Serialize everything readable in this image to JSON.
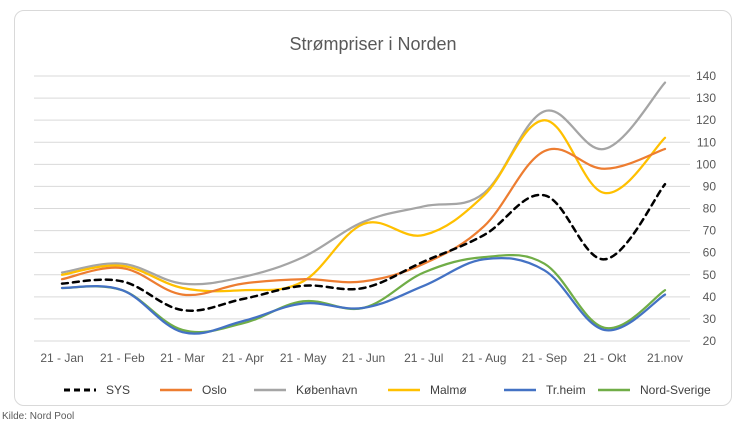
{
  "chart_data": {
    "type": "line",
    "title": "Strømpriser i Norden",
    "categories": [
      "21 - Jan",
      "21 - Feb",
      "21 - Mar",
      "21 - Apr",
      "21 - May",
      "21 - Jun",
      "21 - Jul",
      "21 - Aug",
      "21 - Sep",
      "21 - Okt",
      "21.nov"
    ],
    "y_ticks": [
      "140",
      "130",
      "120",
      "110",
      "100",
      "90",
      "80",
      "70",
      "60",
      "50",
      "40",
      "30",
      "20"
    ],
    "ylim": [
      20,
      140
    ],
    "y_axis_side": "right",
    "grid": true,
    "legend_position": "bottom",
    "series": [
      {
        "name": "SYS",
        "color": "#000000",
        "dashed": true,
        "values": [
          46,
          47,
          34,
          39,
          45,
          44,
          56,
          68,
          86,
          57,
          91
        ]
      },
      {
        "name": "Oslo",
        "color": "#ED7D31",
        "dashed": false,
        "values": [
          48,
          53,
          41,
          46,
          48,
          47,
          55,
          72,
          106,
          98,
          107
        ]
      },
      {
        "name": "København",
        "color": "#A5A5A5",
        "dashed": false,
        "values": [
          51,
          55,
          46,
          49,
          58,
          74,
          81,
          87,
          124,
          107,
          137
        ]
      },
      {
        "name": "Malmø",
        "color": "#FFC000",
        "dashed": false,
        "values": [
          50,
          54,
          44,
          43,
          47,
          73,
          68,
          86,
          120,
          87,
          112
        ]
      },
      {
        "name": "Tr.heim",
        "color": "#4472C4",
        "dashed": false,
        "values": [
          44,
          43,
          24,
          29,
          37,
          35,
          45,
          57,
          52,
          25,
          41
        ]
      },
      {
        "name": "Nord-Sverige",
        "color": "#70AD47",
        "dashed": false,
        "values": [
          44,
          43,
          25,
          28,
          38,
          35,
          51,
          58,
          55,
          26,
          43
        ]
      }
    ]
  },
  "source_text": "Kilde: Nord Pool"
}
